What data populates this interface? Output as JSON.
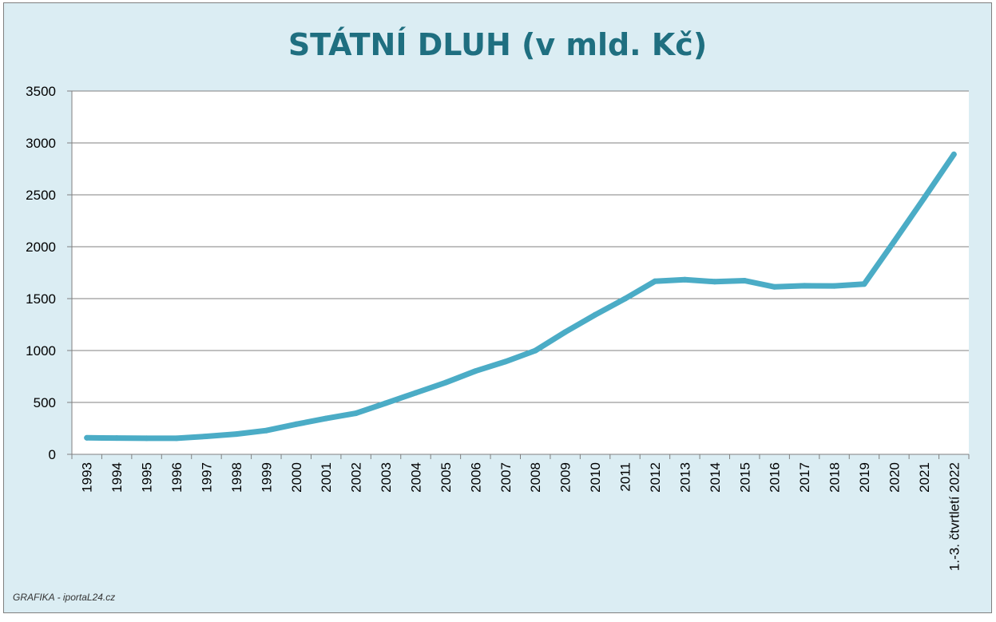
{
  "chart_data": {
    "type": "line",
    "title": "STÁTNÍ DLUH (v mld. Kč)",
    "xlabel": "",
    "ylabel": "",
    "ylim": [
      0,
      3500
    ],
    "yticks": [
      0,
      500,
      1000,
      1500,
      2000,
      2500,
      3000,
      3500
    ],
    "grid": true,
    "legend": "none",
    "categories": [
      "1993",
      "1994",
      "1995",
      "1996",
      "1997",
      "1998",
      "1999",
      "2000",
      "2001",
      "2002",
      "2003",
      "2004",
      "2005",
      "2006",
      "2007",
      "2008",
      "2009",
      "2010",
      "2011",
      "2012",
      "2013",
      "2014",
      "2015",
      "2016",
      "2017",
      "2018",
      "2019",
      "2020",
      "2021",
      "1.-3. čtvrtletí 2022"
    ],
    "series": [
      {
        "name": "",
        "color": "#4bacc6",
        "values": [
          159,
          157,
          155,
          155,
          173,
          195,
          229,
          290,
          345,
          395,
          493,
          592,
          691,
          802,
          893,
          999,
          1178,
          1344,
          1499,
          1667,
          1683,
          1663,
          1673,
          1613,
          1624,
          1622,
          1640,
          2050,
          2466,
          2890
        ]
      }
    ]
  },
  "footer": {
    "credit": "GRAFIKA - iportaL24.cz"
  },
  "colors": {
    "background": "#dbedf3",
    "plot_area": "#ffffff",
    "line": "#4bacc6",
    "title": "#1f6f80",
    "grid": "#808080"
  }
}
